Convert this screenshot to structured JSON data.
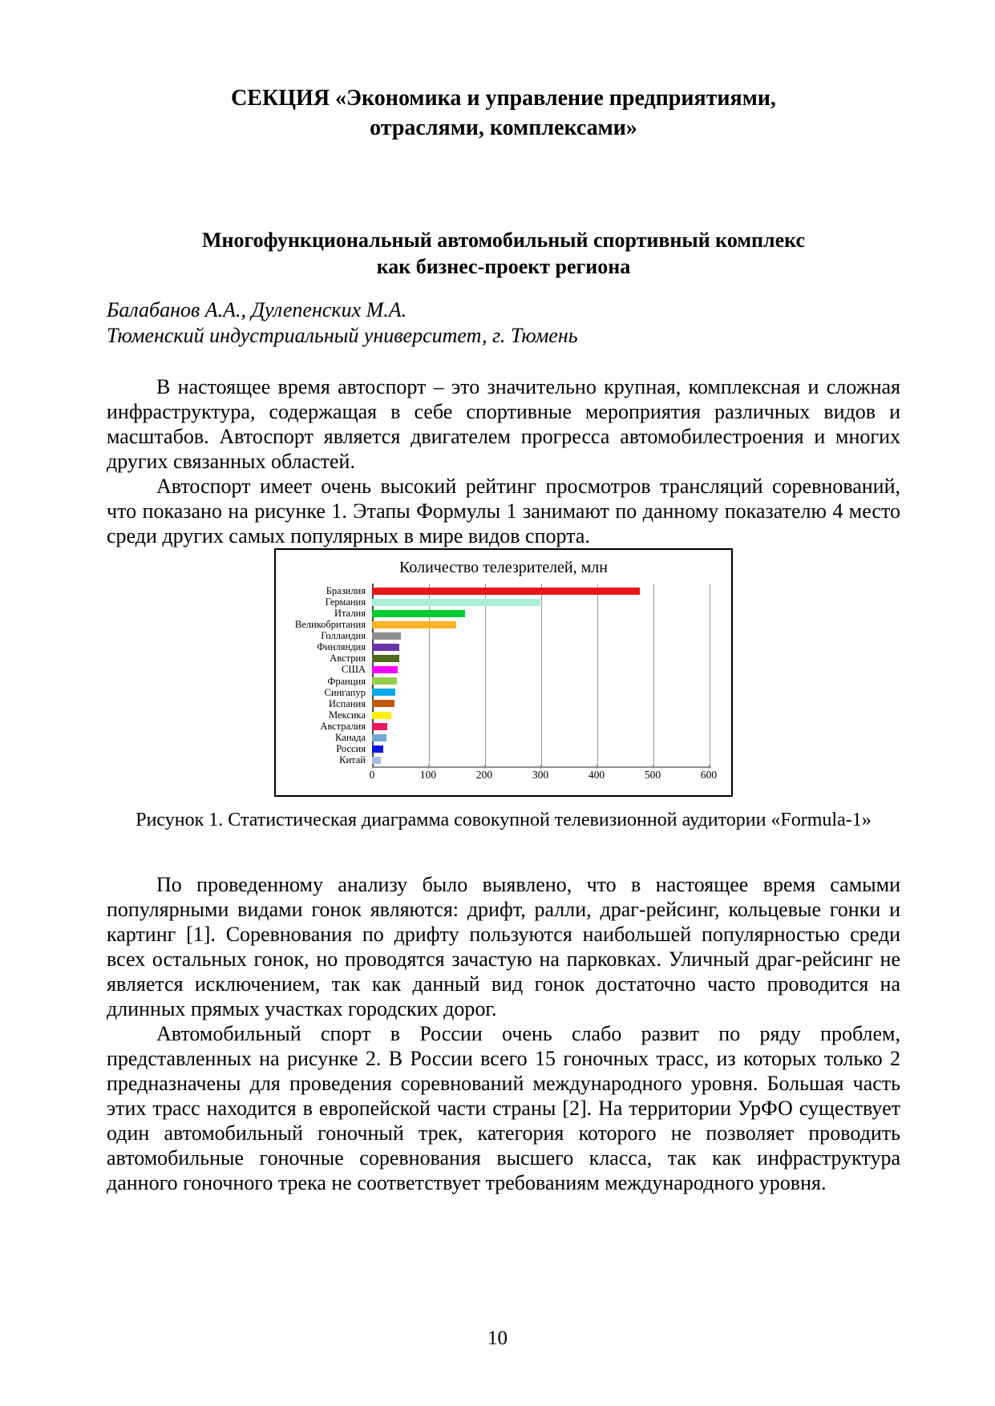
{
  "page": {
    "section_title": "СЕКЦИЯ «Экономика и управление предприятиями,\nотраслями, комплексами»",
    "article_title": "Многофункциональный автомобильный спортивный комплекс\nкак бизнес-проект региона",
    "authors": "Балабанов А.А., Дулепенских М.А.",
    "affiliation": "Тюменский индустриальный университет, г. Тюмень",
    "paragraphs": [
      "В настоящее время автоспорт – это значительно крупная, комплексная и сложная инфраструктура, содержащая в себе спортивные мероприятия различных видов и масштабов. Автоспорт является двигателем прогресса автомобилестроения и многих других связанных областей.",
      "Автоспорт имеет очень высокий рейтинг просмотров трансляций соревнований, что показано на рисунке 1. Этапы Формулы 1 занимают по данному показателю 4 место среди других самых популярных в мире видов спорта.",
      "По проведенному анализу было выявлено, что в настоящее время самыми популярными видами гонок являются: дрифт, ралли, драг-рейсинг, кольцевые гонки и картинг [1]. Соревнования по дрифту пользуются наибольшей популярностью среди всех остальных гонок, но проводятся зачастую на парковках. Уличный драг-рейсинг не является исключением, так как данный вид гонок достаточно часто проводится на длинных прямых участках городских дорог.",
      "Автомобильный спорт в России очень слабо развит по ряду проблем, представленных на рисунке 2. В России всего 15 гоночных трасс, из которых только 2 предназначены для проведения соревнований международного уровня. Большая часть этих трасс находится в европейской части страны [2]. На территории УрФО существует один автомобильный гоночный трек, категория которого не позволяет проводить автомобильные гоночные соревнования высшего класса, так как инфраструктура данного гоночного трека не соответствует требованиям международного уровня."
    ],
    "figure_caption": "Рисунок 1. Статистическая диаграмма совокупной телевизионной аудитории «Formula-1»",
    "page_number": "10"
  },
  "chart_data": {
    "type": "bar",
    "orientation": "horizontal",
    "title": "Количество телезрителей, млн",
    "categories": [
      "Бразилия",
      "Германия",
      "Италия",
      "Великобритания",
      "Голландия",
      "Финляндия",
      "Австрия",
      "США",
      "Франция",
      "Сингапур",
      "Испания",
      "Мексика",
      "Австралия",
      "Канада",
      "Россия",
      "Китай"
    ],
    "values": [
      477,
      300,
      165,
      150,
      52,
      48,
      48,
      45,
      44,
      42,
      40,
      34,
      27,
      25,
      20,
      15
    ],
    "colors": [
      "#E81416",
      "#ABF0D9",
      "#00CC33",
      "#FFB326",
      "#8C8C8C",
      "#6A35A8",
      "#50691F",
      "#FF00FF",
      "#97CE4E",
      "#00A9EC",
      "#C2590F",
      "#FFF200",
      "#EC1761",
      "#6FA8D8",
      "#0D16E0",
      "#A8BFE4"
    ],
    "xlabel": "",
    "ylabel": "",
    "xlim": [
      0,
      600
    ],
    "xticks": [
      0,
      100,
      200,
      300,
      400,
      500,
      600
    ],
    "grid": true,
    "legend": false
  }
}
